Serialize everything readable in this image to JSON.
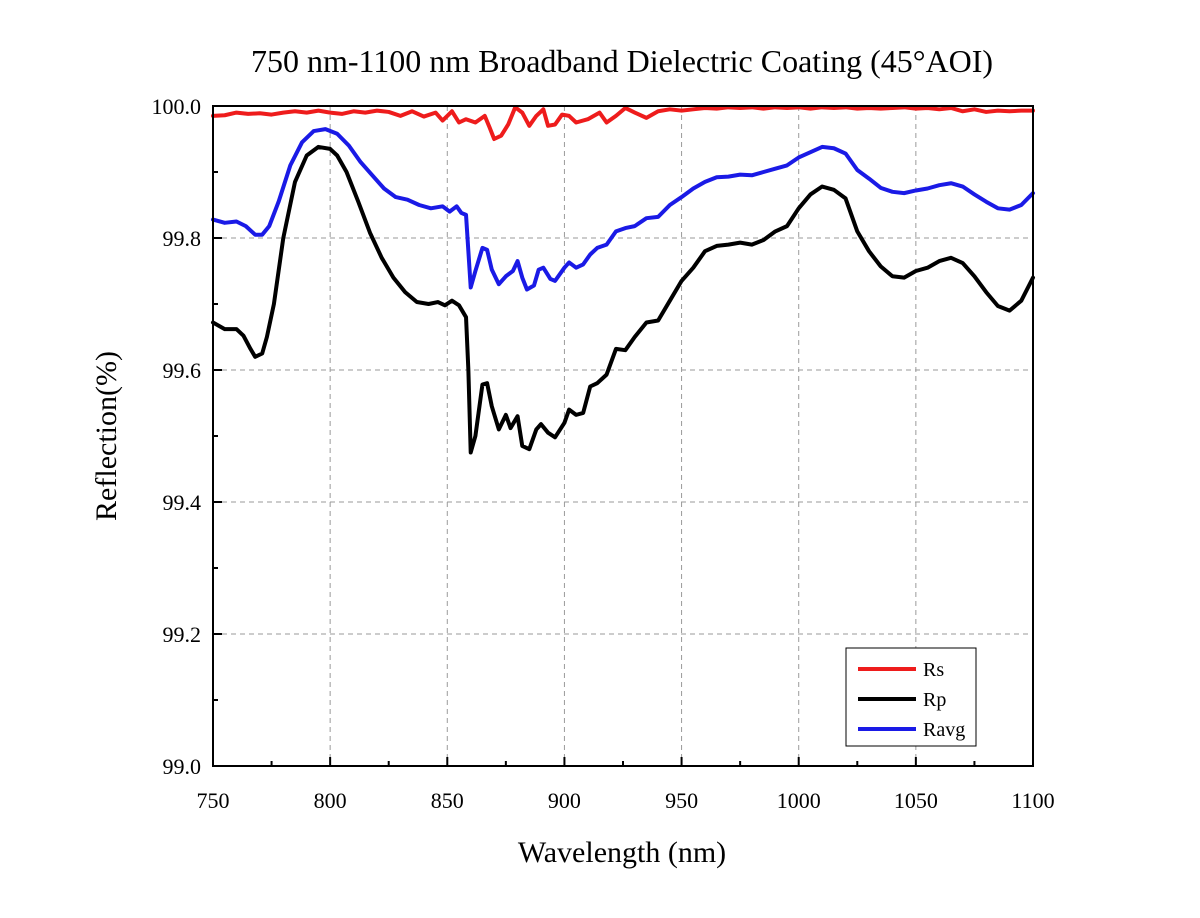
{
  "chart_data": {
    "type": "line",
    "title": "750 nm-1100 nm Broadband Dielectric Coating (45°AOI)",
    "xlabel": "Wavelength (nm)",
    "ylabel": "Reflection(%)",
    "xlim": [
      750,
      1100
    ],
    "ylim": [
      99.0,
      100.0
    ],
    "xticks": [
      750,
      800,
      850,
      900,
      950,
      1000,
      1050,
      1100
    ],
    "xtick_labels": [
      "750",
      "800",
      "850",
      "900",
      "950",
      "1000",
      "1050",
      "1100"
    ],
    "yticks": [
      99.0,
      99.2,
      99.4,
      99.6,
      99.8,
      100.0
    ],
    "ytick_labels": [
      "99.0",
      "99.2",
      "99.4",
      "99.6",
      "99.8",
      "100.0"
    ],
    "grid": true,
    "legend_position": "bottom-right",
    "series": [
      {
        "name": "Rs",
        "color": "#ee1c1c",
        "points": [
          [
            750,
            99.985
          ],
          [
            755,
            99.986
          ],
          [
            760,
            99.99
          ],
          [
            765,
            99.988
          ],
          [
            770,
            99.989
          ],
          [
            775,
            99.987
          ],
          [
            780,
            99.99
          ],
          [
            785,
            99.992
          ],
          [
            790,
            99.99
          ],
          [
            795,
            99.993
          ],
          [
            800,
            99.99
          ],
          [
            805,
            99.988
          ],
          [
            810,
            99.992
          ],
          [
            815,
            99.99
          ],
          [
            820,
            99.993
          ],
          [
            825,
            99.991
          ],
          [
            830,
            99.985
          ],
          [
            835,
            99.992
          ],
          [
            840,
            99.984
          ],
          [
            845,
            99.99
          ],
          [
            848,
            99.978
          ],
          [
            852,
            99.992
          ],
          [
            855,
            99.975
          ],
          [
            858,
            99.98
          ],
          [
            862,
            99.975
          ],
          [
            866,
            99.985
          ],
          [
            868,
            99.968
          ],
          [
            870,
            99.95
          ],
          [
            873,
            99.955
          ],
          [
            876,
            99.972
          ],
          [
            879,
            99.998
          ],
          [
            882,
            99.99
          ],
          [
            885,
            99.97
          ],
          [
            888,
            99.985
          ],
          [
            891,
            99.995
          ],
          [
            893,
            99.97
          ],
          [
            896,
            99.972
          ],
          [
            899,
            99.987
          ],
          [
            902,
            99.985
          ],
          [
            905,
            99.975
          ],
          [
            910,
            99.98
          ],
          [
            915,
            99.99
          ],
          [
            918,
            99.975
          ],
          [
            922,
            99.985
          ],
          [
            926,
            99.997
          ],
          [
            930,
            99.99
          ],
          [
            935,
            99.982
          ],
          [
            940,
            99.992
          ],
          [
            945,
            99.995
          ],
          [
            950,
            99.993
          ],
          [
            955,
            99.995
          ],
          [
            960,
            99.997
          ],
          [
            965,
            99.996
          ],
          [
            970,
            99.998
          ],
          [
            975,
            99.997
          ],
          [
            980,
            99.998
          ],
          [
            985,
            99.996
          ],
          [
            990,
            99.998
          ],
          [
            995,
            99.997
          ],
          [
            1000,
            99.998
          ],
          [
            1005,
            99.996
          ],
          [
            1010,
            99.998
          ],
          [
            1015,
            99.997
          ],
          [
            1020,
            99.998
          ],
          [
            1025,
            99.996
          ],
          [
            1030,
            99.997
          ],
          [
            1035,
            99.996
          ],
          [
            1040,
            99.997
          ],
          [
            1045,
            99.998
          ],
          [
            1050,
            99.996
          ],
          [
            1055,
            99.997
          ],
          [
            1060,
            99.995
          ],
          [
            1065,
            99.997
          ],
          [
            1070,
            99.992
          ],
          [
            1075,
            99.995
          ],
          [
            1080,
            99.991
          ],
          [
            1085,
            99.993
          ],
          [
            1090,
            99.992
          ],
          [
            1095,
            99.993
          ],
          [
            1100,
            99.993
          ]
        ]
      },
      {
        "name": "Rp",
        "color": "#000000",
        "points": [
          [
            750,
            99.672
          ],
          [
            755,
            99.662
          ],
          [
            760,
            99.662
          ],
          [
            763,
            99.652
          ],
          [
            766,
            99.632
          ],
          [
            768,
            99.62
          ],
          [
            771,
            99.625
          ],
          [
            773,
            99.65
          ],
          [
            776,
            99.7
          ],
          [
            780,
            99.8
          ],
          [
            785,
            99.885
          ],
          [
            790,
            99.925
          ],
          [
            795,
            99.938
          ],
          [
            800,
            99.935
          ],
          [
            803,
            99.925
          ],
          [
            807,
            99.9
          ],
          [
            812,
            99.855
          ],
          [
            817,
            99.808
          ],
          [
            822,
            99.77
          ],
          [
            827,
            99.74
          ],
          [
            832,
            99.718
          ],
          [
            837,
            99.703
          ],
          [
            842,
            99.7
          ],
          [
            846,
            99.703
          ],
          [
            849,
            99.698
          ],
          [
            852,
            99.705
          ],
          [
            855,
            99.698
          ],
          [
            858,
            99.68
          ],
          [
            859,
            99.6
          ],
          [
            860,
            99.475
          ],
          [
            862,
            99.5
          ],
          [
            865,
            99.578
          ],
          [
            867,
            99.58
          ],
          [
            869,
            99.545
          ],
          [
            872,
            99.51
          ],
          [
            875,
            99.532
          ],
          [
            877,
            99.512
          ],
          [
            880,
            99.53
          ],
          [
            882,
            99.485
          ],
          [
            885,
            99.48
          ],
          [
            888,
            99.51
          ],
          [
            890,
            99.518
          ],
          [
            893,
            99.505
          ],
          [
            896,
            99.498
          ],
          [
            900,
            99.52
          ],
          [
            902,
            99.54
          ],
          [
            905,
            99.532
          ],
          [
            908,
            99.535
          ],
          [
            911,
            99.575
          ],
          [
            914,
            99.58
          ],
          [
            918,
            99.593
          ],
          [
            922,
            99.632
          ],
          [
            926,
            99.63
          ],
          [
            930,
            99.65
          ],
          [
            935,
            99.672
          ],
          [
            940,
            99.675
          ],
          [
            945,
            99.705
          ],
          [
            950,
            99.735
          ],
          [
            955,
            99.755
          ],
          [
            960,
            99.78
          ],
          [
            965,
            99.788
          ],
          [
            970,
            99.79
          ],
          [
            975,
            99.793
          ],
          [
            980,
            99.79
          ],
          [
            985,
            99.797
          ],
          [
            990,
            99.81
          ],
          [
            995,
            99.818
          ],
          [
            1000,
            99.845
          ],
          [
            1005,
            99.866
          ],
          [
            1010,
            99.878
          ],
          [
            1015,
            99.873
          ],
          [
            1020,
            99.86
          ],
          [
            1025,
            99.81
          ],
          [
            1030,
            99.78
          ],
          [
            1035,
            99.757
          ],
          [
            1040,
            99.742
          ],
          [
            1045,
            99.74
          ],
          [
            1050,
            99.75
          ],
          [
            1055,
            99.755
          ],
          [
            1060,
            99.765
          ],
          [
            1065,
            99.77
          ],
          [
            1070,
            99.762
          ],
          [
            1075,
            99.742
          ],
          [
            1080,
            99.718
          ],
          [
            1085,
            99.697
          ],
          [
            1090,
            99.69
          ],
          [
            1095,
            99.705
          ],
          [
            1100,
            99.74
          ]
        ]
      },
      {
        "name": "Ravg",
        "color": "#1a1ae6",
        "points": [
          [
            750,
            99.828
          ],
          [
            755,
            99.823
          ],
          [
            760,
            99.825
          ],
          [
            764,
            99.818
          ],
          [
            768,
            99.805
          ],
          [
            771,
            99.805
          ],
          [
            774,
            99.818
          ],
          [
            778,
            99.855
          ],
          [
            783,
            99.91
          ],
          [
            788,
            99.945
          ],
          [
            793,
            99.962
          ],
          [
            798,
            99.965
          ],
          [
            803,
            99.958
          ],
          [
            808,
            99.94
          ],
          [
            813,
            99.915
          ],
          [
            818,
            99.895
          ],
          [
            823,
            99.875
          ],
          [
            828,
            99.862
          ],
          [
            833,
            99.858
          ],
          [
            838,
            99.85
          ],
          [
            843,
            99.845
          ],
          [
            848,
            99.848
          ],
          [
            851,
            99.84
          ],
          [
            854,
            99.848
          ],
          [
            856,
            99.838
          ],
          [
            858,
            99.835
          ],
          [
            859,
            99.78
          ],
          [
            860,
            99.725
          ],
          [
            862,
            99.75
          ],
          [
            865,
            99.785
          ],
          [
            867,
            99.782
          ],
          [
            869,
            99.752
          ],
          [
            872,
            99.73
          ],
          [
            875,
            99.742
          ],
          [
            878,
            99.75
          ],
          [
            880,
            99.765
          ],
          [
            882,
            99.74
          ],
          [
            884,
            99.722
          ],
          [
            887,
            99.728
          ],
          [
            889,
            99.752
          ],
          [
            891,
            99.755
          ],
          [
            894,
            99.738
          ],
          [
            896,
            99.735
          ],
          [
            900,
            99.755
          ],
          [
            902,
            99.763
          ],
          [
            905,
            99.755
          ],
          [
            908,
            99.76
          ],
          [
            911,
            99.775
          ],
          [
            914,
            99.785
          ],
          [
            918,
            99.79
          ],
          [
            922,
            99.81
          ],
          [
            926,
            99.815
          ],
          [
            930,
            99.818
          ],
          [
            935,
            99.83
          ],
          [
            940,
            99.832
          ],
          [
            945,
            99.85
          ],
          [
            950,
            99.862
          ],
          [
            955,
            99.875
          ],
          [
            960,
            99.885
          ],
          [
            965,
            99.892
          ],
          [
            970,
            99.893
          ],
          [
            975,
            99.896
          ],
          [
            980,
            99.895
          ],
          [
            985,
            99.9
          ],
          [
            990,
            99.905
          ],
          [
            995,
            99.91
          ],
          [
            1000,
            99.922
          ],
          [
            1005,
            99.93
          ],
          [
            1010,
            99.938
          ],
          [
            1015,
            99.936
          ],
          [
            1020,
            99.928
          ],
          [
            1025,
            99.903
          ],
          [
            1030,
            99.89
          ],
          [
            1035,
            99.876
          ],
          [
            1040,
            99.87
          ],
          [
            1045,
            99.868
          ],
          [
            1050,
            99.872
          ],
          [
            1055,
            99.875
          ],
          [
            1060,
            99.88
          ],
          [
            1065,
            99.883
          ],
          [
            1070,
            99.878
          ],
          [
            1075,
            99.866
          ],
          [
            1080,
            99.855
          ],
          [
            1085,
            99.845
          ],
          [
            1090,
            99.843
          ],
          [
            1095,
            99.85
          ],
          [
            1100,
            99.868
          ]
        ]
      }
    ]
  }
}
